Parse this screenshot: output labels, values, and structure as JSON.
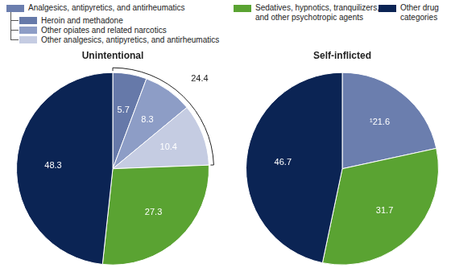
{
  "chart_data": [
    {
      "type": "pie",
      "title": "Unintentional",
      "categories": [
        "Heroin and methadone",
        "Other opiates and related narcotics",
        "Other analgesics, antipyretics, and antirheumatics",
        "Sedatives, hypnotics, tranquilizers, and other psychotropic agents",
        "Other drug categories"
      ],
      "values": [
        5.7,
        8.3,
        10.4,
        27.3,
        48.3
      ],
      "colors": [
        "#6679a9",
        "#8d9dc6",
        "#c5cce2",
        "#5aa332",
        "#0b2454"
      ],
      "data_labels": true,
      "annotations": [
        {
          "value": 24.4,
          "categories": [
            "Heroin and methadone",
            "Other opiates and related narcotics",
            "Other analgesics, antipyretics, and antirheumatics"
          ]
        }
      ]
    },
    {
      "type": "pie",
      "title": "Self-inflicted",
      "categories": [
        "Analgesics, antipyretics, and antirheumatics",
        "Sedatives, hypnotics, tranquilizers, and other psychotropic agents",
        "Other drug categories"
      ],
      "values": [
        21.6,
        31.7,
        46.7
      ],
      "value_labels": [
        "¹21.6",
        "31.7",
        "46.7"
      ],
      "colors": [
        "#6b7eae",
        "#5aa332",
        "#0b2454"
      ],
      "data_labels": true
    }
  ],
  "legend_entries": [
    {
      "label": "Analgesics, antipyretics, and antirheumatics",
      "color": "#6b7eae",
      "children": [
        {
          "label": "Heroin and methadone",
          "color": "#6679a9"
        },
        {
          "label": "Other opiates and related narcotics",
          "color": "#8d9dc6"
        },
        {
          "label": "Other analgesics, antipyretics, and antirheumatics",
          "color": "#c5cce2"
        }
      ]
    },
    {
      "label": "Sedatives, hypnotics, tranquilizers, and other psychotropic agents",
      "color": "#5aa332"
    },
    {
      "label": "Other drug categories",
      "color": "#0b2454"
    }
  ]
}
